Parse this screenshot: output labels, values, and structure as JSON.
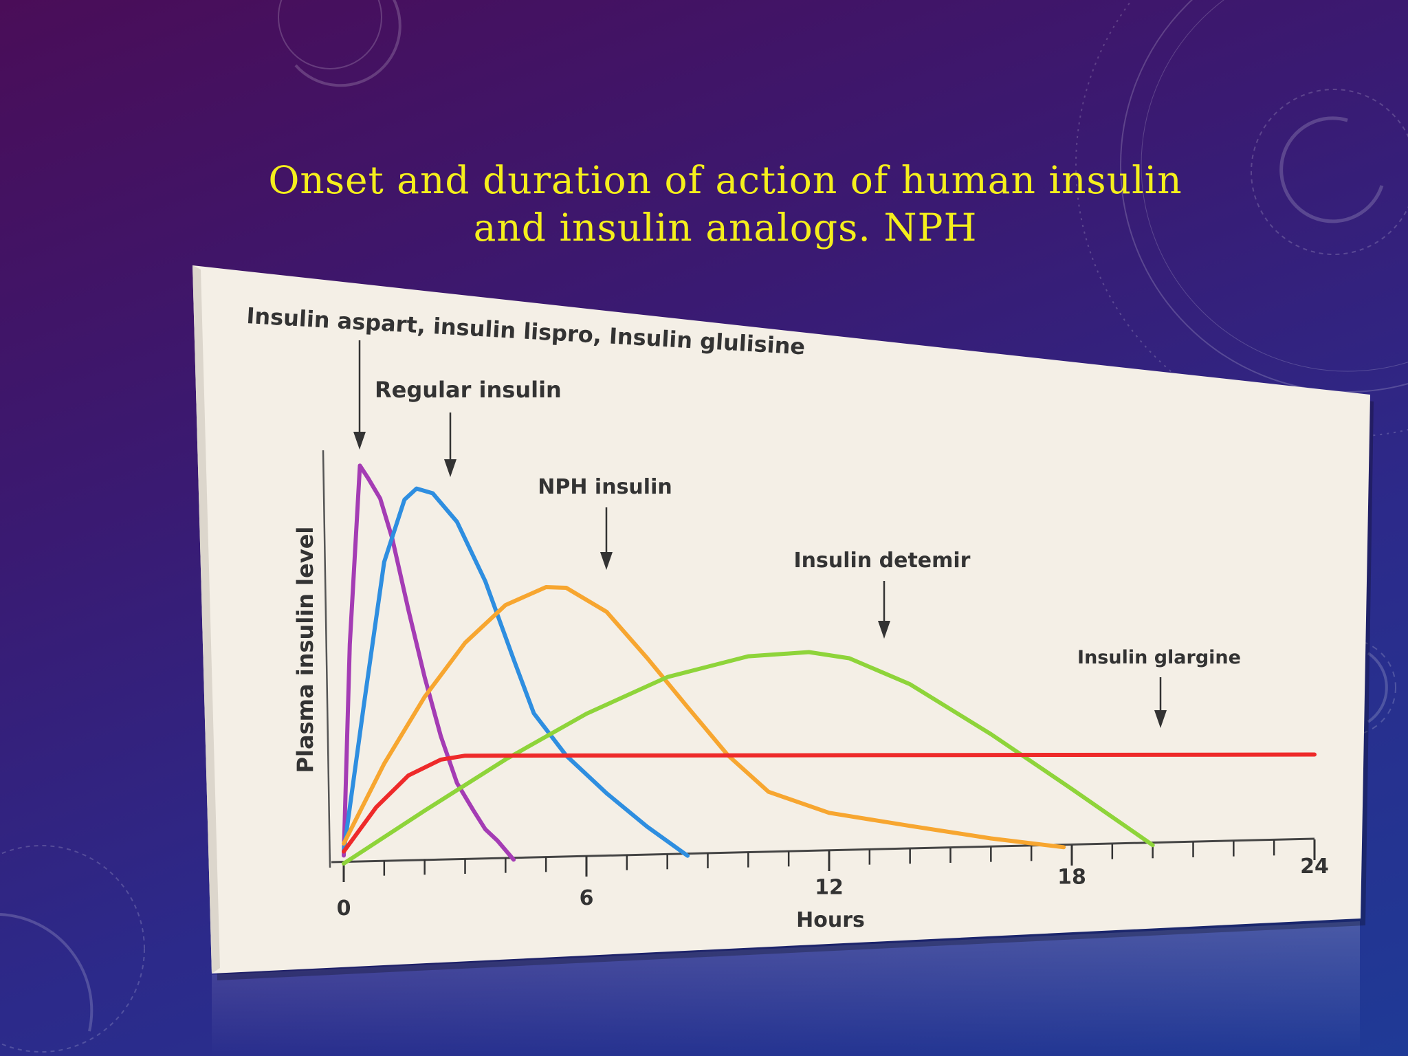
{
  "slide": {
    "title_line1": "Onset and duration of action of human insulin",
    "title_line2": "and insulin analogs. NPH"
  },
  "colors": {
    "title": "#f5ef1c",
    "aspart_lispro_glulisine": "#a43cb4",
    "regular": "#2e8ee0",
    "nph": "#f7a630",
    "detemir": "#8ed43a",
    "glargine": "#ee2a2a"
  },
  "chart_data": {
    "type": "line",
    "xlabel": "Hours",
    "ylabel": "Plasma insulin level",
    "xlim": [
      0,
      24
    ],
    "ylim": [
      0,
      1
    ],
    "x_ticks": [
      0,
      6,
      12,
      18,
      24
    ],
    "y_ticks_labeled": false,
    "legend": "none",
    "series": [
      {
        "name": "Insulin aspart, insulin lispro, Insulin glulisine",
        "key": "aspart",
        "color": "#a43cb4",
        "annotation_x": 0.3,
        "points": [
          [
            0,
            0.02
          ],
          [
            0.15,
            0.55
          ],
          [
            0.4,
            1.0
          ],
          [
            0.6,
            0.97
          ],
          [
            0.9,
            0.92
          ],
          [
            1.2,
            0.82
          ],
          [
            1.6,
            0.64
          ],
          [
            2.0,
            0.47
          ],
          [
            2.4,
            0.32
          ],
          [
            2.8,
            0.2
          ],
          [
            3.2,
            0.13
          ],
          [
            3.5,
            0.08
          ],
          [
            3.8,
            0.05
          ],
          [
            4.2,
            0.0
          ]
        ]
      },
      {
        "name": "Regular insulin",
        "key": "regular",
        "color": "#2e8ee0",
        "annotation_x": 2.2,
        "points": [
          [
            0,
            0.03
          ],
          [
            0.5,
            0.4
          ],
          [
            1.0,
            0.76
          ],
          [
            1.5,
            0.92
          ],
          [
            1.8,
            0.95
          ],
          [
            2.2,
            0.94
          ],
          [
            2.8,
            0.87
          ],
          [
            3.5,
            0.72
          ],
          [
            4.2,
            0.52
          ],
          [
            4.7,
            0.38
          ],
          [
            5.5,
            0.27
          ],
          [
            6.5,
            0.17
          ],
          [
            7.5,
            0.08
          ],
          [
            8.5,
            0.0
          ]
        ]
      },
      {
        "name": "NPH insulin",
        "key": "nph",
        "color": "#f7a630",
        "annotation_x": 5.4,
        "points": [
          [
            0,
            0.05
          ],
          [
            1,
            0.25
          ],
          [
            2,
            0.42
          ],
          [
            3,
            0.56
          ],
          [
            4,
            0.66
          ],
          [
            5,
            0.71
          ],
          [
            5.5,
            0.71
          ],
          [
            6.5,
            0.65
          ],
          [
            7.5,
            0.53
          ],
          [
            8.5,
            0.4
          ],
          [
            9.5,
            0.27
          ],
          [
            10.5,
            0.17
          ],
          [
            12,
            0.11
          ],
          [
            14,
            0.07
          ],
          [
            16,
            0.03
          ],
          [
            17.8,
            0.0
          ]
        ]
      },
      {
        "name": "Insulin detemir",
        "key": "detemir",
        "color": "#8ed43a",
        "annotation_x": 11.5,
        "points": [
          [
            0,
            0.0
          ],
          [
            2,
            0.13
          ],
          [
            4,
            0.26
          ],
          [
            6,
            0.38
          ],
          [
            8,
            0.48
          ],
          [
            10,
            0.54
          ],
          [
            11.5,
            0.555
          ],
          [
            12.5,
            0.54
          ],
          [
            14,
            0.47
          ],
          [
            16,
            0.33
          ],
          [
            18,
            0.17
          ],
          [
            20,
            0.0
          ]
        ]
      },
      {
        "name": "Insulin glargine",
        "key": "glargine",
        "color": "#ee2a2a",
        "annotation_x": 18.7,
        "points": [
          [
            0,
            0.03
          ],
          [
            0.8,
            0.14
          ],
          [
            1.6,
            0.22
          ],
          [
            2.4,
            0.26
          ],
          [
            3.0,
            0.27
          ],
          [
            6,
            0.27
          ],
          [
            12,
            0.27
          ],
          [
            18,
            0.27
          ],
          [
            24,
            0.27
          ]
        ]
      }
    ]
  }
}
